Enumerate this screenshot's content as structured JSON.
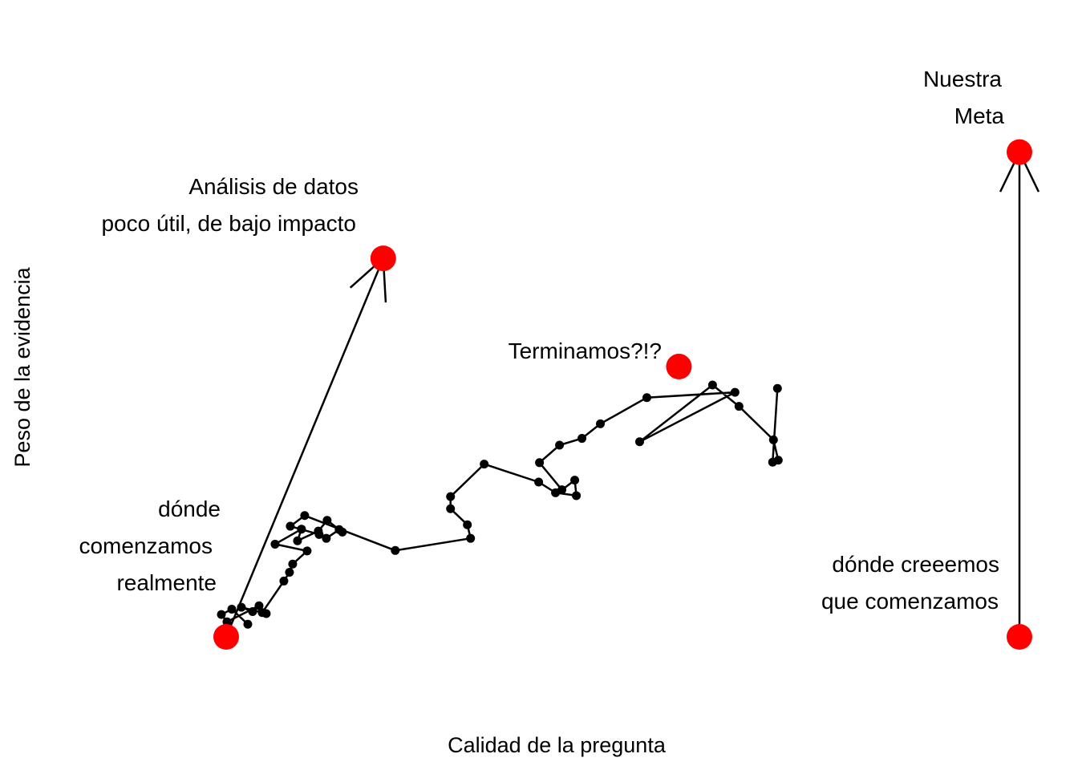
{
  "chart_data": {
    "type": "scatter",
    "title": "",
    "xlabel": "Calidad de la pregunta",
    "ylabel": "Peso de la evidencia",
    "xlim": [
      0,
      100
    ],
    "ylim": [
      0,
      100
    ],
    "grid": false,
    "axes_visible": false,
    "colors": {
      "path": "#000000",
      "marker": "#ff0000"
    },
    "walk": {
      "points": [
        [
          3.7,
          2.6
        ],
        [
          1.7,
          5.7
        ],
        [
          0.4,
          4.6
        ],
        [
          1.1,
          3.1
        ],
        [
          5.1,
          6.4
        ],
        [
          4.3,
          5.2
        ],
        [
          2.9,
          6.1
        ],
        [
          6.0,
          4.8
        ],
        [
          5.5,
          5.0
        ],
        [
          8.2,
          11.5
        ],
        [
          8.9,
          13.3
        ],
        [
          9.3,
          15.0
        ],
        [
          11.1,
          17.7
        ],
        [
          7.1,
          19.1
        ],
        [
          10.4,
          22.2
        ],
        [
          9.9,
          19.8
        ],
        [
          12.5,
          21.8
        ],
        [
          13.6,
          24.0
        ],
        [
          15.5,
          21.6
        ],
        [
          15.1,
          22.1
        ],
        [
          13.5,
          20.3
        ],
        [
          12.6,
          21.1
        ],
        [
          9.0,
          22.8
        ],
        [
          10.8,
          25.0
        ],
        [
          22.1,
          17.8
        ],
        [
          31.5,
          20.3
        ],
        [
          31.1,
          23.1
        ],
        [
          29.0,
          26.4
        ],
        [
          29.0,
          28.9
        ],
        [
          33.2,
          35.6
        ],
        [
          40.0,
          31.9
        ],
        [
          42.1,
          29.7
        ],
        [
          44.7,
          29.1
        ],
        [
          44.5,
          32.3
        ],
        [
          42.9,
          30.3
        ],
        [
          40.1,
          35.9
        ],
        [
          42.6,
          39.5
        ],
        [
          45.4,
          40.9
        ],
        [
          47.7,
          43.9
        ],
        [
          53.5,
          49.3
        ],
        [
          64.5,
          50.4
        ],
        [
          52.6,
          40.2
        ],
        [
          61.7,
          51.9
        ],
        [
          65.0,
          47.5
        ],
        [
          69.3,
          40.6
        ],
        [
          69.9,
          36.4
        ],
        [
          69.2,
          36.0
        ],
        [
          69.8,
          51.2
        ]
      ]
    },
    "arrows": [
      {
        "from": [
          1.0,
          0.0
        ],
        "to": [
          20.6,
          78.0
        ]
      },
      {
        "from": [
          100.0,
          0.0
        ],
        "to": [
          100.0,
          99.9
        ]
      }
    ],
    "markers": [
      {
        "x": 1.0,
        "y": 0.0
      },
      {
        "x": 20.6,
        "y": 78.0
      },
      {
        "x": 57.5,
        "y": 55.7
      },
      {
        "x": 100.0,
        "y": 0.0
      },
      {
        "x": 100.0,
        "y": 99.9
      }
    ]
  },
  "labels": {
    "where_we_started_line1": "dónde",
    "where_we_started_line2": "comenzamos",
    "where_we_started_line3": "realmente",
    "useless_analysis_line1": "Análisis de datos",
    "useless_analysis_line2": "poco útil, de bajo impacto",
    "done": "Terminamos?!?",
    "our_goal_line1": "Nuestra",
    "our_goal_line2": "Meta",
    "where_we_think_line1": "dónde creeemos",
    "where_we_think_line2": "que comenzamos"
  }
}
